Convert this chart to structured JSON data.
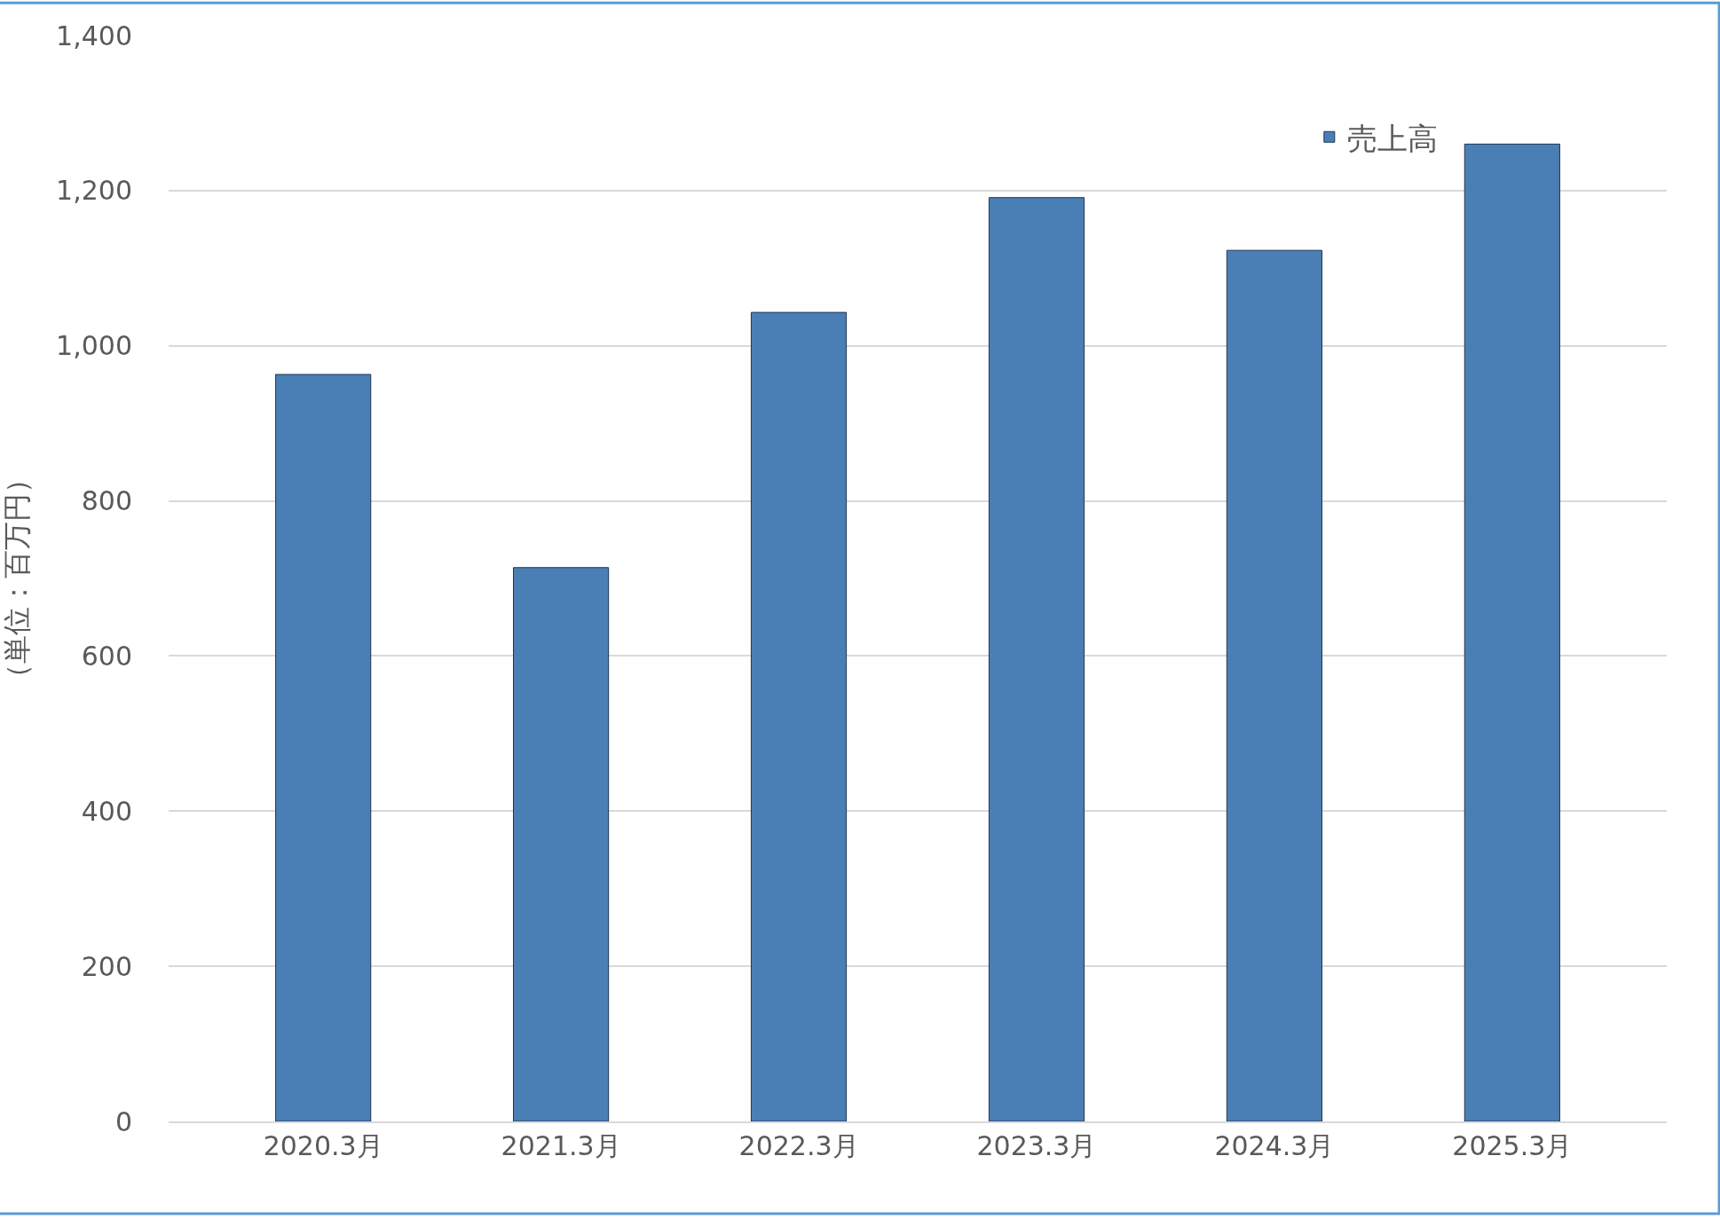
{
  "chart_data": {
    "type": "bar",
    "ylabel": "（単位：百万円）",
    "categories": [
      "2020.3月",
      "2021.3月",
      "2022.3月",
      "2023.3月",
      "2024.3月",
      "2025.3月"
    ],
    "series": [
      {
        "name": "売上高",
        "color": "#4a7fb5",
        "values": [
          963,
          714,
          1043,
          1191,
          1123,
          1260
        ]
      }
    ],
    "ylim": [
      0,
      1400
    ],
    "yticks": [
      {
        "value": 0,
        "label": "0"
      },
      {
        "value": 200,
        "label": "200"
      },
      {
        "value": 400,
        "label": "400"
      },
      {
        "value": 600,
        "label": "600"
      },
      {
        "value": 800,
        "label": "800"
      },
      {
        "value": 1000,
        "label": "1,000"
      },
      {
        "value": 1200,
        "label": "1,200"
      },
      {
        "value": 1400,
        "label": "1,400"
      }
    ],
    "grid": "y",
    "legend": "top right"
  }
}
